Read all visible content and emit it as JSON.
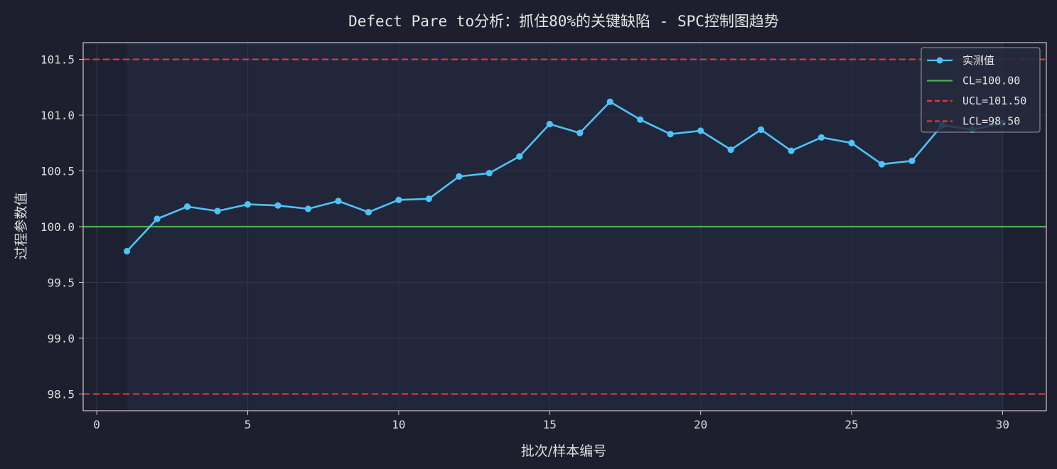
{
  "chart_data": {
    "type": "line",
    "title": "Defect Pare to分析：抓住80%的关键缺陷 - SPC控制图趋势",
    "xlabel": "批次/样本编号",
    "ylabel": "过程参数值",
    "xlim": [
      -0.45,
      31.45
    ],
    "ylim": [
      98.35,
      101.65
    ],
    "xticks": [
      0,
      5,
      10,
      15,
      20,
      25,
      30
    ],
    "yticks": [
      98.5,
      99.0,
      99.5,
      100.0,
      100.5,
      101.0,
      101.5
    ],
    "ytick_labels": [
      "98.5",
      "99.0",
      "99.5",
      "100.0",
      "100.5",
      "101.0",
      "101.5"
    ],
    "grid": true,
    "legend_position": "top-right",
    "series": [
      {
        "name": "实测值",
        "color": "#4fc3f7",
        "x": [
          1,
          2,
          3,
          4,
          5,
          6,
          7,
          8,
          9,
          10,
          11,
          12,
          13,
          14,
          15,
          16,
          17,
          18,
          19,
          20,
          21,
          22,
          23,
          24,
          25,
          26,
          27,
          28,
          29,
          30
        ],
        "y": [
          99.78,
          100.07,
          100.18,
          100.14,
          100.2,
          100.19,
          100.16,
          100.23,
          100.13,
          100.24,
          100.25,
          100.45,
          100.48,
          100.63,
          100.92,
          100.84,
          101.12,
          100.96,
          100.83,
          100.86,
          100.69,
          100.87,
          100.68,
          100.8,
          100.75,
          100.56,
          100.59,
          100.91,
          100.87,
          100.93
        ]
      }
    ],
    "control_lines": [
      {
        "name": "CL=100.00",
        "value": 100.0,
        "color": "#4caf50",
        "style": "solid"
      },
      {
        "name": "UCL=101.50",
        "value": 101.5,
        "color": "#e53935",
        "style": "dashed"
      },
      {
        "name": "LCL=98.50",
        "value": 98.5,
        "color": "#e53935",
        "style": "dashed"
      }
    ],
    "colors": {
      "background": "#1e1e2e",
      "plot_background": "#21263a",
      "axes": "#c8c8c8",
      "grid": "#2f3448",
      "text": "#dcdcdc"
    }
  }
}
